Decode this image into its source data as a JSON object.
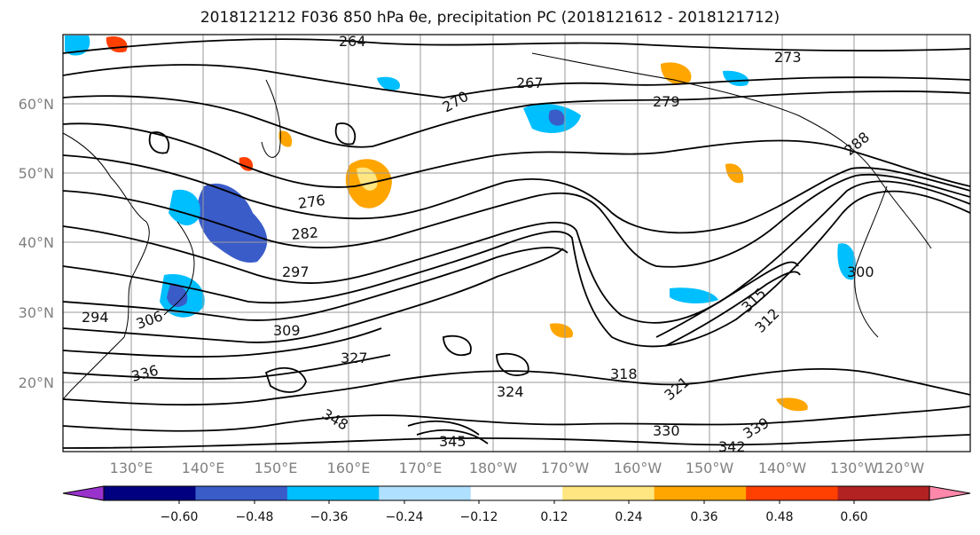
{
  "title": "2018121212 F036 850 hPa θe, precipitation PC (2018121612 - 2018121712)",
  "lat_labels": [
    "60°N",
    "50°N",
    "40°N",
    "30°N",
    "20°N"
  ],
  "lon_labels": [
    "130°E",
    "140°E",
    "150°E",
    "160°E",
    "170°E",
    "180°W",
    "170°W",
    "160°W",
    "150°W",
    "140°W",
    "130°W",
    "120°W"
  ],
  "colorbar": {
    "colors": [
      "#9932CC",
      "#000080",
      "#3A5CC8",
      "#00BFFF",
      "#B0E0FF",
      "#FFFFFF",
      "#FFE680",
      "#FFA500",
      "#FF4000",
      "#B22222",
      "#FF88AA"
    ],
    "tick_labels": [
      "−0.60",
      "−0.48",
      "−0.36",
      "−0.24",
      "−0.12",
      "0.12",
      "0.24",
      "0.36",
      "0.48",
      "0.60"
    ]
  },
  "contour_labels": [
    "264",
    "267",
    "270",
    "276",
    "282",
    "297",
    "294",
    "306",
    "309",
    "315",
    "288",
    "330",
    "336",
    "348",
    "345",
    "342",
    "339",
    "327",
    "324",
    "321",
    "318",
    "312",
    "300",
    "279",
    "273"
  ]
}
